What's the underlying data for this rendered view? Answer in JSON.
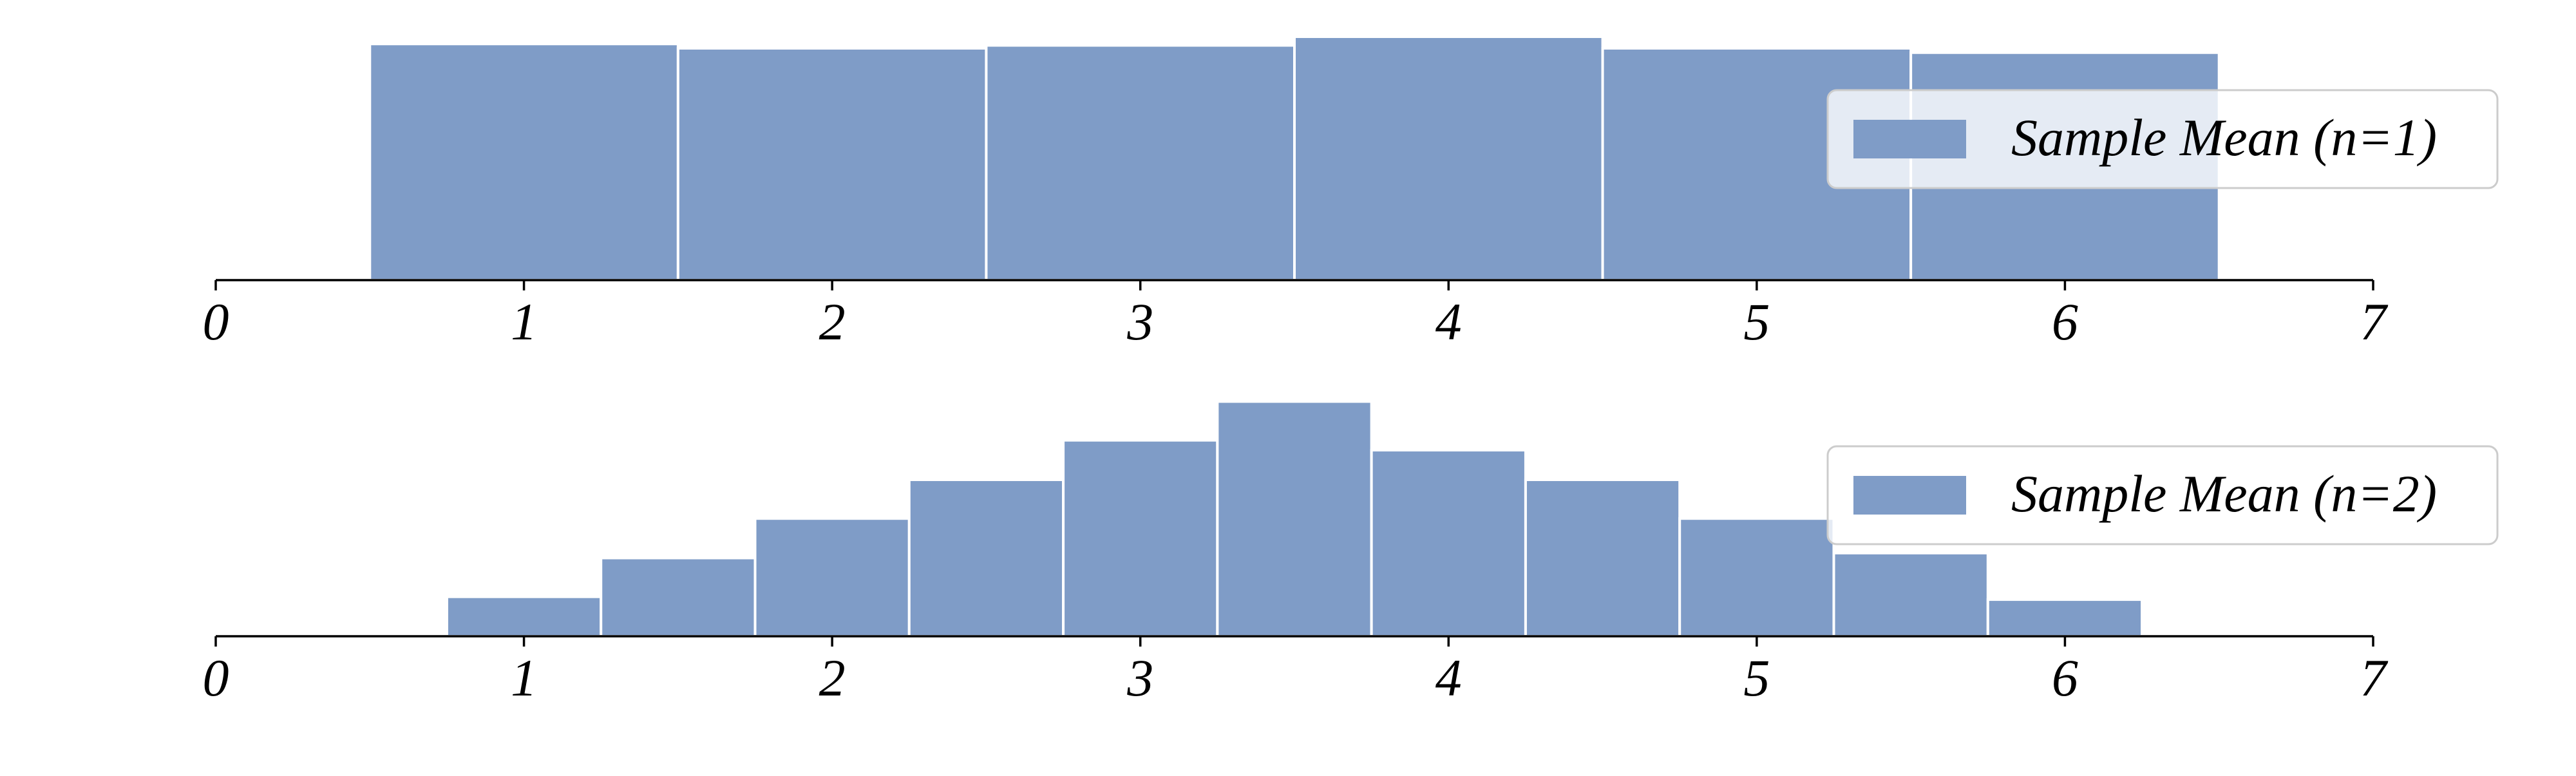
{
  "chart_data": [
    {
      "type": "bar",
      "legend": "Sample Mean (n=1)",
      "legend_position": "upper-right",
      "bin_edges": [
        0.5,
        1.5,
        2.5,
        3.5,
        4.5,
        5.5,
        6.5
      ],
      "values": [
        0.163,
        0.16,
        0.162,
        0.168,
        0.16,
        0.157
      ],
      "xlim": [
        0,
        7
      ],
      "ylim": [
        0,
        0.18
      ],
      "xticks": [
        "0",
        "1",
        "2",
        "3",
        "4",
        "5",
        "6",
        "7"
      ],
      "grid": false,
      "color": "#7F9CC7"
    },
    {
      "type": "bar",
      "legend": "Sample Mean (n=2)",
      "legend_position": "upper-right",
      "bin_edges": [
        0.75,
        1.25,
        1.75,
        2.25,
        2.75,
        3.25,
        3.75,
        4.25,
        4.75,
        5.25,
        5.75,
        6.25
      ],
      "values": [
        0.056,
        0.111,
        0.167,
        0.222,
        0.278,
        0.333,
        0.264,
        0.222,
        0.167,
        0.118,
        0.052
      ],
      "xlim": [
        0,
        7
      ],
      "ylim": [
        0,
        0.37
      ],
      "xticks": [
        "0",
        "1",
        "2",
        "3",
        "4",
        "5",
        "6",
        "7"
      ],
      "grid": false,
      "color": "#7F9CC7"
    }
  ]
}
